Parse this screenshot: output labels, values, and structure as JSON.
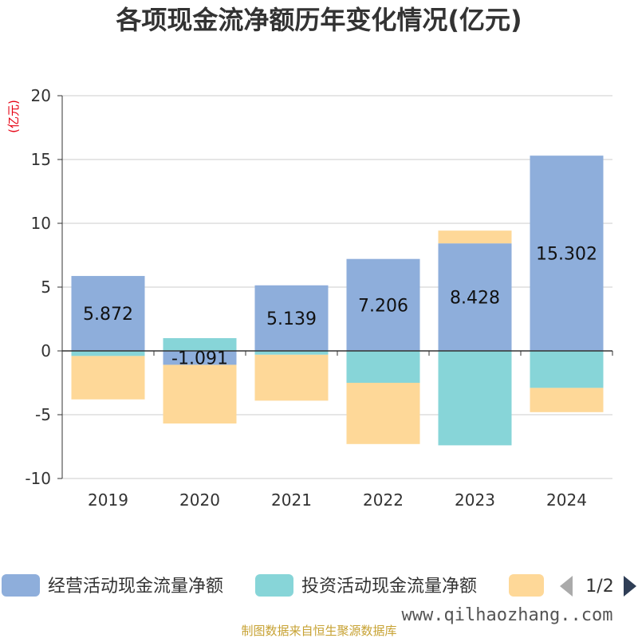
{
  "chart_data": {
    "type": "bar",
    "stacked": true,
    "title": "各项现金流净额历年变化情况(亿元)",
    "unit_label": "(亿元)",
    "categories": [
      "2019",
      "2020",
      "2021",
      "2022",
      "2023",
      "2024"
    ],
    "series": [
      {
        "name": "经营活动现金流量净额",
        "color": "#8eaedb",
        "values": [
          5.872,
          -1.091,
          5.139,
          7.206,
          8.428,
          15.302
        ]
      },
      {
        "name": "投资活动现金流量净额",
        "color": "#87d5d8",
        "values": [
          -0.4,
          1.0,
          -0.3,
          -2.5,
          -7.4,
          -2.9
        ]
      },
      {
        "name": "",
        "color": "#fed898",
        "values": [
          -3.4,
          -4.6,
          -3.6,
          -4.8,
          1.0,
          -1.9
        ]
      }
    ],
    "data_labels": [
      "5.872",
      "-1.091",
      "5.139",
      "7.206",
      "8.428",
      "15.302"
    ],
    "ylim": [
      -10,
      20
    ],
    "yticks": [
      20,
      15,
      10,
      5,
      0,
      -5,
      -10
    ],
    "grid": true,
    "legend_position": "bottom"
  },
  "legend": {
    "page_indicator": "1/2"
  },
  "watermark": "www.qilhaozhang..com",
  "source_note": "制图数据来自恒生聚源数据库"
}
